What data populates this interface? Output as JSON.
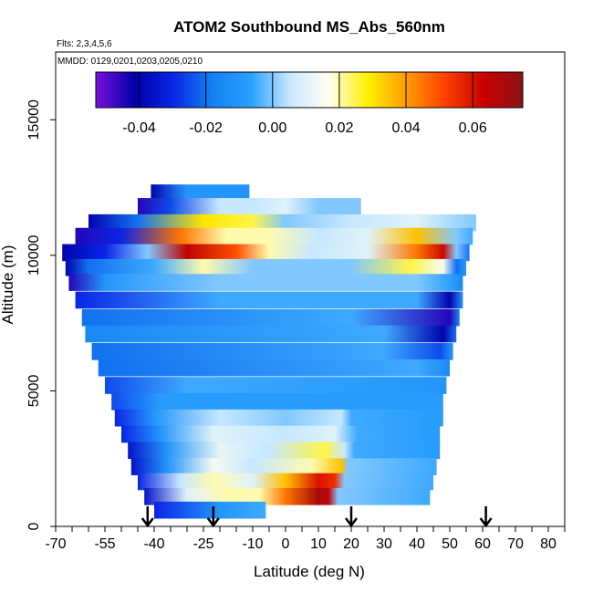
{
  "chart_data": {
    "type": "heatmap",
    "title": "ATOM2 Southbound MS_Abs_560nm",
    "flights_note": "Flts: 2,3,4,5,6",
    "dates_note": "MMDD: 0129,0201,0203,0205,0210",
    "xlabel": "Latitude (deg N)",
    "ylabel": "Altitude (m)",
    "xlim": [
      -70,
      85
    ],
    "ylim": [
      0,
      17500
    ],
    "x_tick_labels": [
      "-70",
      "-55",
      "-40",
      "-25",
      "-10",
      "0",
      "10",
      "20",
      "30",
      "40",
      "50",
      "60",
      "70",
      "80"
    ],
    "y_tick_labels": [
      "0",
      "5000",
      "10000",
      "15000"
    ],
    "colorbar": {
      "range": [
        -0.053,
        0.075
      ],
      "tick_labels": [
        "-0.04",
        "-0.02",
        "0.00",
        "0.02",
        "0.04",
        "0.06"
      ],
      "colors": [
        "#7a10e0",
        "#0000a6",
        "#0a26e6",
        "#1480f2",
        "#2aa0ff",
        "#c8e8ff",
        "#fffff0",
        "#fff000",
        "#ff9c00",
        "#ff4000",
        "#c80000",
        "#8c1414"
      ]
    },
    "arrow_latitudes": [
      -42,
      -22,
      20,
      61
    ],
    "bands": [
      {
        "alt": 12300,
        "lat_min": -41,
        "lat_max": -11,
        "values": [
          [
            -41,
            -0.04
          ],
          [
            -30,
            -0.01
          ],
          [
            -11,
            -0.01
          ]
        ]
      },
      {
        "alt": 11800,
        "lat_min": -45,
        "lat_max": 23,
        "values": [
          [
            -45,
            -0.045
          ],
          [
            -35,
            -0.025
          ],
          [
            -20,
            0.005
          ],
          [
            -10,
            0.005
          ],
          [
            0,
            0.01
          ],
          [
            10,
            0.0
          ],
          [
            23,
            0.0
          ]
        ]
      },
      {
        "alt": 11200,
        "lat_min": -60,
        "lat_max": 58,
        "values": [
          [
            -60,
            -0.04
          ],
          [
            -45,
            -0.02
          ],
          [
            -25,
            0.03
          ],
          [
            -10,
            0.025
          ],
          [
            0,
            0.0
          ],
          [
            20,
            0.005
          ],
          [
            40,
            0.01
          ],
          [
            58,
            0.0
          ]
        ]
      },
      {
        "alt": 10700,
        "lat_min": -64,
        "lat_max": 57,
        "values": [
          [
            -64,
            -0.045
          ],
          [
            -50,
            -0.03
          ],
          [
            -32,
            0.045
          ],
          [
            -18,
            0.02
          ],
          [
            -5,
            0.02
          ],
          [
            10,
            0.005
          ],
          [
            25,
            0.01
          ],
          [
            40,
            0.035
          ],
          [
            52,
            0.0
          ],
          [
            57,
            -0.005
          ]
        ]
      },
      {
        "alt": 10100,
        "lat_min": -68,
        "lat_max": 56,
        "values": [
          [
            -68,
            -0.04
          ],
          [
            -55,
            -0.03
          ],
          [
            -42,
            0.0
          ],
          [
            -30,
            0.065
          ],
          [
            -15,
            0.05
          ],
          [
            -5,
            0.02
          ],
          [
            8,
            0.005
          ],
          [
            25,
            0.01
          ],
          [
            40,
            0.045
          ],
          [
            48,
            0.062
          ],
          [
            52,
            0.0
          ],
          [
            56,
            -0.02
          ]
        ]
      },
      {
        "alt": 9550,
        "lat_min": -67,
        "lat_max": 55,
        "values": [
          [
            -67,
            -0.04
          ],
          [
            -60,
            -0.02
          ],
          [
            -40,
            -0.005
          ],
          [
            -25,
            0.02
          ],
          [
            -10,
            0.0
          ],
          [
            20,
            0.0
          ],
          [
            38,
            0.025
          ],
          [
            48,
            0.015
          ],
          [
            52,
            -0.02
          ],
          [
            55,
            -0.01
          ]
        ]
      },
      {
        "alt": 9000,
        "lat_min": -66,
        "lat_max": 54,
        "values": [
          [
            -66,
            -0.045
          ],
          [
            -55,
            -0.01
          ],
          [
            -20,
            0.0
          ],
          [
            40,
            0.0
          ],
          [
            48,
            -0.005
          ],
          [
            54,
            -0.015
          ]
        ]
      },
      {
        "alt": 8350,
        "lat_min": -64,
        "lat_max": 54,
        "values": [
          [
            -64,
            -0.03
          ],
          [
            -20,
            -0.005
          ],
          [
            40,
            -0.005
          ],
          [
            50,
            -0.04
          ],
          [
            54,
            -0.01
          ]
        ]
      },
      {
        "alt": 7700,
        "lat_min": -62,
        "lat_max": 53,
        "values": [
          [
            -62,
            -0.02
          ],
          [
            20,
            -0.005
          ],
          [
            50,
            -0.045
          ],
          [
            53,
            -0.015
          ]
        ]
      },
      {
        "alt": 7100,
        "lat_min": -61,
        "lat_max": 52,
        "values": [
          [
            -61,
            -0.015
          ],
          [
            30,
            -0.005
          ],
          [
            48,
            -0.04
          ],
          [
            52,
            -0.02
          ]
        ]
      },
      {
        "alt": 6450,
        "lat_min": -59,
        "lat_max": 51,
        "values": [
          [
            -59,
            -0.02
          ],
          [
            30,
            -0.005
          ],
          [
            47,
            -0.025
          ],
          [
            51,
            -0.01
          ]
        ]
      },
      {
        "alt": 5850,
        "lat_min": -57,
        "lat_max": 50,
        "values": [
          [
            -57,
            -0.02
          ],
          [
            40,
            -0.005
          ],
          [
            50,
            -0.015
          ]
        ]
      },
      {
        "alt": 5200,
        "lat_min": -55,
        "lat_max": 49,
        "values": [
          [
            -55,
            -0.025
          ],
          [
            -30,
            -0.005
          ],
          [
            49,
            -0.01
          ]
        ]
      },
      {
        "alt": 4600,
        "lat_min": -53,
        "lat_max": 48,
        "values": [
          [
            -53,
            -0.025
          ],
          [
            -38,
            -0.008
          ],
          [
            48,
            -0.008
          ]
        ]
      },
      {
        "alt": 4000,
        "lat_min": -52,
        "lat_max": 48,
        "values": [
          [
            -52,
            -0.03
          ],
          [
            -40,
            -0.01
          ],
          [
            -20,
            0.005
          ],
          [
            0,
            0.0
          ],
          [
            17,
            0.005
          ],
          [
            20,
            -0.005
          ],
          [
            48,
            -0.008
          ]
        ]
      },
      {
        "alt": 3400,
        "lat_min": -50,
        "lat_max": 47,
        "values": [
          [
            -50,
            -0.03
          ],
          [
            -38,
            -0.01
          ],
          [
            -22,
            0.01
          ],
          [
            0,
            0.005
          ],
          [
            15,
            0.01
          ],
          [
            19,
            0.0
          ],
          [
            22,
            -0.005
          ],
          [
            47,
            -0.008
          ]
        ]
      },
      {
        "alt": 2800,
        "lat_min": -48,
        "lat_max": 47,
        "values": [
          [
            -48,
            -0.035
          ],
          [
            -36,
            -0.01
          ],
          [
            -20,
            0.012
          ],
          [
            -5,
            0.005
          ],
          [
            12,
            0.025
          ],
          [
            18,
            0.005
          ],
          [
            21,
            -0.005
          ],
          [
            47,
            -0.008
          ]
        ]
      },
      {
        "alt": 2200,
        "lat_min": -47,
        "lat_max": 46,
        "values": [
          [
            -47,
            -0.035
          ],
          [
            -36,
            -0.01
          ],
          [
            -22,
            0.015
          ],
          [
            -10,
            0.005
          ],
          [
            8,
            0.02
          ],
          [
            17,
            0.035
          ],
          [
            19,
            0.0
          ],
          [
            46,
            -0.005
          ]
        ]
      },
      {
        "alt": 1650,
        "lat_min": -45,
        "lat_max": 45,
        "values": [
          [
            -45,
            -0.03
          ],
          [
            -32,
            0.005
          ],
          [
            -22,
            0.02
          ],
          [
            -10,
            0.01
          ],
          [
            0,
            0.035
          ],
          [
            10,
            0.06
          ],
          [
            15,
            0.055
          ],
          [
            18,
            0.0
          ],
          [
            45,
            -0.005
          ]
        ]
      },
      {
        "alt": 1100,
        "lat_min": -43,
        "lat_max": 44,
        "values": [
          [
            -43,
            -0.035
          ],
          [
            -30,
            0.01
          ],
          [
            -18,
            0.02
          ],
          [
            -8,
            0.02
          ],
          [
            0,
            0.045
          ],
          [
            10,
            0.07
          ],
          [
            13,
            0.065
          ],
          [
            16,
            0.0
          ],
          [
            44,
            -0.005
          ]
        ]
      },
      {
        "alt": 600,
        "lat_min": -40,
        "lat_max": -6,
        "values": [
          [
            -40,
            -0.03
          ],
          [
            -20,
            -0.01
          ],
          [
            -6,
            -0.005
          ]
        ]
      }
    ]
  }
}
